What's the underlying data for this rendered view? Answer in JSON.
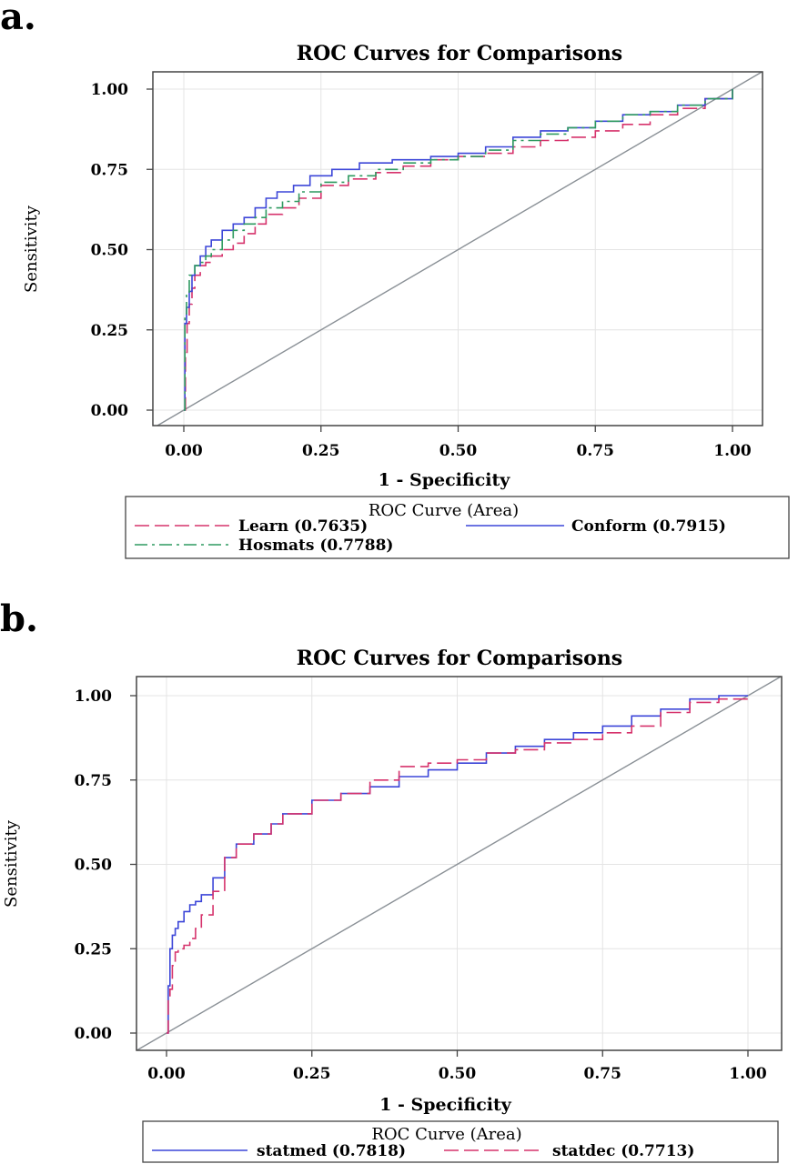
{
  "chart_data": [
    {
      "panel": "a.",
      "type": "line",
      "title": "ROC Curves for Comparisons",
      "xlabel": "1 - Specificity",
      "ylabel": "Sensitivity",
      "xlim": [
        0,
        1
      ],
      "ylim": [
        0,
        1
      ],
      "xticks": [
        "0.00",
        "0.25",
        "0.50",
        "0.75",
        "1.00"
      ],
      "yticks": [
        "0.00",
        "0.25",
        "0.50",
        "0.75",
        "1.00"
      ],
      "grid": true,
      "legend": {
        "title": "ROC Curve (Area)",
        "placement": "bottom",
        "entries": [
          "Learn  (0.7635)",
          "Conform  (0.7915)",
          "Hosmats  (0.7788)"
        ]
      },
      "series": [
        {
          "name": "Learn",
          "area": 0.7635,
          "color": "#d6336c",
          "dash": "dash",
          "x": [
            0,
            0.003,
            0.006,
            0.01,
            0.015,
            0.02,
            0.03,
            0.04,
            0.05,
            0.07,
            0.09,
            0.11,
            0.13,
            0.15,
            0.18,
            0.21,
            0.25,
            0.3,
            0.35,
            0.4,
            0.45,
            0.5,
            0.55,
            0.6,
            0.65,
            0.7,
            0.75,
            0.8,
            0.85,
            0.9,
            0.95,
            1.0
          ],
          "y": [
            0,
            0.18,
            0.27,
            0.33,
            0.38,
            0.42,
            0.45,
            0.46,
            0.48,
            0.5,
            0.52,
            0.55,
            0.58,
            0.61,
            0.63,
            0.66,
            0.7,
            0.72,
            0.74,
            0.76,
            0.78,
            0.79,
            0.8,
            0.82,
            0.84,
            0.85,
            0.87,
            0.89,
            0.92,
            0.94,
            0.97,
            1.0
          ]
        },
        {
          "name": "Conform",
          "area": 0.7915,
          "color": "#3c46d8",
          "dash": "solid",
          "x": [
            0,
            0.002,
            0.005,
            0.01,
            0.015,
            0.02,
            0.03,
            0.04,
            0.05,
            0.07,
            0.09,
            0.11,
            0.13,
            0.15,
            0.17,
            0.2,
            0.23,
            0.27,
            0.32,
            0.38,
            0.45,
            0.5,
            0.55,
            0.6,
            0.65,
            0.7,
            0.75,
            0.8,
            0.85,
            0.9,
            0.95,
            1.0
          ],
          "y": [
            0,
            0.27,
            0.32,
            0.37,
            0.42,
            0.45,
            0.48,
            0.51,
            0.53,
            0.56,
            0.58,
            0.6,
            0.63,
            0.66,
            0.68,
            0.7,
            0.73,
            0.75,
            0.77,
            0.78,
            0.79,
            0.8,
            0.82,
            0.85,
            0.87,
            0.88,
            0.9,
            0.92,
            0.93,
            0.95,
            0.97,
            1.0
          ]
        },
        {
          "name": "Hosmats",
          "area": 0.7788,
          "color": "#2f9a60",
          "dash": "dashdot",
          "x": [
            0,
            0.002,
            0.005,
            0.01,
            0.02,
            0.03,
            0.04,
            0.05,
            0.07,
            0.09,
            0.11,
            0.13,
            0.15,
            0.18,
            0.21,
            0.25,
            0.3,
            0.35,
            0.4,
            0.45,
            0.5,
            0.55,
            0.6,
            0.65,
            0.7,
            0.75,
            0.8,
            0.85,
            0.9,
            0.95,
            1.0
          ],
          "y": [
            0,
            0.3,
            0.36,
            0.42,
            0.45,
            0.46,
            0.48,
            0.5,
            0.53,
            0.56,
            0.58,
            0.6,
            0.63,
            0.65,
            0.68,
            0.71,
            0.73,
            0.75,
            0.77,
            0.78,
            0.79,
            0.81,
            0.84,
            0.86,
            0.88,
            0.9,
            0.92,
            0.93,
            0.95,
            0.97,
            1.0
          ]
        }
      ]
    },
    {
      "panel": "b.",
      "type": "line",
      "title": "ROC Curves for Comparisons",
      "xlabel": "1 - Specificity",
      "ylabel": "Sensitivity",
      "xlim": [
        0,
        1
      ],
      "ylim": [
        0,
        1
      ],
      "xticks": [
        "0.00",
        "0.25",
        "0.50",
        "0.75",
        "1.00"
      ],
      "yticks": [
        "0.00",
        "0.25",
        "0.50",
        "0.75",
        "1.00"
      ],
      "grid": true,
      "legend": {
        "title": "ROC Curve (Area)",
        "placement": "bottom",
        "entries": [
          "statmed  (0.7818)",
          "statdec  (0.7713)"
        ]
      },
      "series": [
        {
          "name": "statmed",
          "area": 0.7818,
          "color": "#3c46d8",
          "dash": "solid",
          "x": [
            0,
            0.003,
            0.006,
            0.01,
            0.015,
            0.02,
            0.03,
            0.04,
            0.05,
            0.06,
            0.08,
            0.1,
            0.12,
            0.15,
            0.18,
            0.2,
            0.25,
            0.3,
            0.35,
            0.4,
            0.45,
            0.5,
            0.55,
            0.6,
            0.65,
            0.7,
            0.75,
            0.8,
            0.85,
            0.9,
            0.95,
            1.0
          ],
          "y": [
            0,
            0.14,
            0.25,
            0.29,
            0.31,
            0.33,
            0.36,
            0.38,
            0.39,
            0.41,
            0.46,
            0.52,
            0.56,
            0.59,
            0.62,
            0.65,
            0.69,
            0.71,
            0.73,
            0.76,
            0.78,
            0.8,
            0.83,
            0.85,
            0.87,
            0.89,
            0.91,
            0.94,
            0.96,
            0.99,
            1.0,
            1.0
          ]
        },
        {
          "name": "statdec",
          "area": 0.7713,
          "color": "#d6336c",
          "dash": "dash",
          "x": [
            0,
            0.003,
            0.006,
            0.01,
            0.015,
            0.02,
            0.03,
            0.04,
            0.05,
            0.06,
            0.08,
            0.1,
            0.12,
            0.15,
            0.18,
            0.2,
            0.25,
            0.3,
            0.35,
            0.4,
            0.45,
            0.5,
            0.55,
            0.6,
            0.65,
            0.7,
            0.75,
            0.8,
            0.85,
            0.9,
            0.95,
            1.0
          ],
          "y": [
            0,
            0.1,
            0.13,
            0.2,
            0.24,
            0.25,
            0.26,
            0.28,
            0.31,
            0.35,
            0.42,
            0.52,
            0.56,
            0.59,
            0.62,
            0.65,
            0.69,
            0.71,
            0.75,
            0.79,
            0.8,
            0.81,
            0.83,
            0.84,
            0.86,
            0.87,
            0.89,
            0.91,
            0.95,
            0.98,
            0.99,
            1.0
          ]
        }
      ]
    }
  ]
}
